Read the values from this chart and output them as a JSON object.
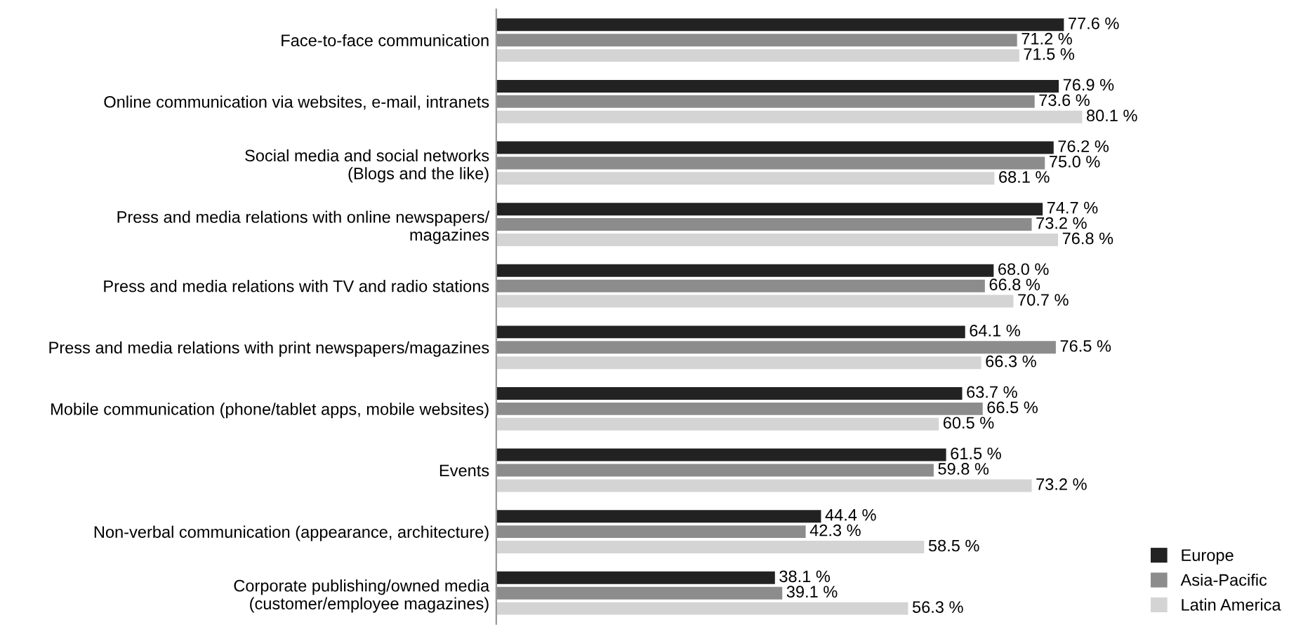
{
  "chart_data": {
    "type": "bar",
    "orientation": "horizontal",
    "categories": [
      "Face-to-face communication",
      "Online communication via websites, e-mail, intranets",
      "Social media and social networks\n(Blogs and the like)",
      "Press and media relations with online newspapers/\nmagazines",
      "Press and media relations with TV and radio stations",
      "Press and media relations with print newspapers/magazines",
      "Mobile communication (phone/tablet apps, mobile websites)",
      "Events",
      "Non-verbal communication (appearance, architecture)",
      "Corporate publishing/owned media\n(customer/employee magazines)"
    ],
    "series": [
      {
        "name": "Europe",
        "color": "#222222",
        "values": [
          77.6,
          76.9,
          76.2,
          74.7,
          68.0,
          64.1,
          63.7,
          61.5,
          44.4,
          38.1
        ],
        "value_labels": [
          "77.6 %",
          "76.9 %",
          "76.2 %",
          "74.7 %",
          "68.0 %",
          "64.1 %",
          "63.7 %",
          "61.5 %",
          "44.4 %",
          "38.1 %"
        ]
      },
      {
        "name": "Asia-Pacific",
        "color": "#8c8c8c",
        "values": [
          71.2,
          73.6,
          75.0,
          73.2,
          66.8,
          76.5,
          66.5,
          59.8,
          42.3,
          39.1
        ],
        "value_labels": [
          "71.2 %",
          "73.6 %",
          "75.0 %",
          "73.2 %",
          "66.8 %",
          "76.5 %",
          "66.5 %",
          "59.8 %",
          "42.3 %",
          "39.1 %"
        ]
      },
      {
        "name": "Latin America",
        "color": "#d4d4d4",
        "values": [
          71.5,
          80.1,
          68.1,
          76.8,
          70.7,
          66.3,
          60.5,
          73.2,
          58.5,
          56.3
        ],
        "value_labels": [
          "71.5 %",
          "80.1 %",
          "68.1 %",
          "76.8 %",
          "70.7 %",
          "66.3 %",
          "60.5 %",
          "73.2 %",
          "58.5 %",
          "56.3 %"
        ]
      }
    ],
    "legend": "bottom right",
    "grid": false
  }
}
